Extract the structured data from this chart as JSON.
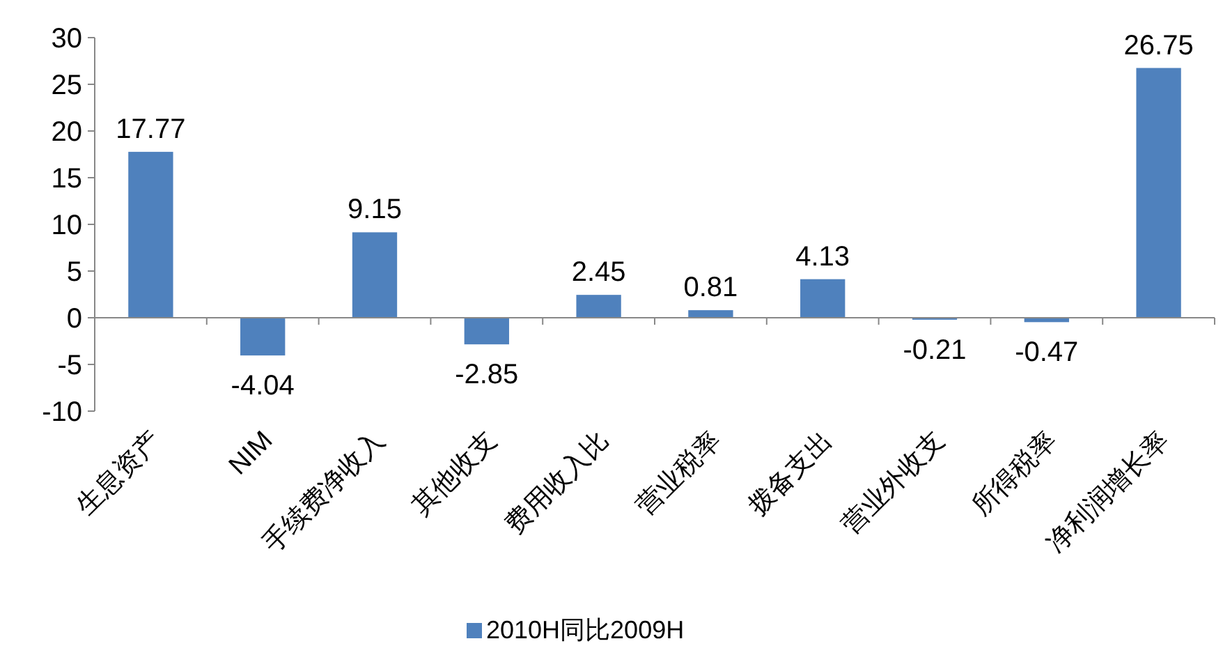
{
  "chart_data": {
    "type": "bar",
    "categories": [
      "生息资产",
      "NIM",
      "手续费净收入",
      "其他收支",
      "费用收入比",
      "营业税率",
      "拨备支出",
      "营业外收支",
      "所得税率",
      "净利润增长率"
    ],
    "series": [
      {
        "name": "2010H同比2009H",
        "color": "#4f81bd",
        "values": [
          17.77,
          -4.04,
          9.15,
          -2.85,
          2.45,
          0.81,
          4.13,
          -0.21,
          -0.47,
          26.75
        ]
      }
    ],
    "ylim": [
      -10,
      30
    ],
    "yticks": [
      -10,
      -5,
      0,
      5,
      10,
      15,
      20,
      25,
      30
    ],
    "data_labels": true,
    "legend": "bottom"
  }
}
